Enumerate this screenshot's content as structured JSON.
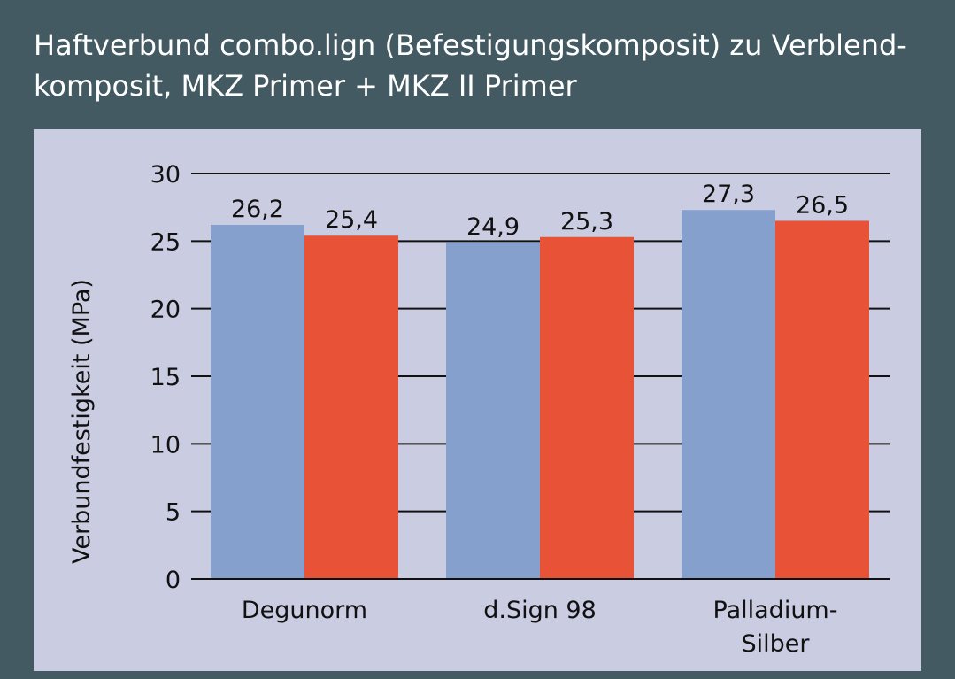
{
  "title": "Haftverbund combo.lign (Befestigungskomposit) zu Verblend-komposit, MKZ Primer + MKZ II Primer",
  "colors": {
    "background": "#435a62",
    "panel": "#cacde2",
    "series_blue": "#85a0cd",
    "series_red": "#e85236",
    "grid": "#111111"
  },
  "chart_data": {
    "type": "bar",
    "title": "Haftverbund combo.lign (Befestigungskomposit) zu Verblend-komposit, MKZ Primer + MKZ II Primer",
    "xlabel": "",
    "ylabel": "Verbundfestigkeit (MPa)",
    "ylim": [
      0,
      30
    ],
    "yticks": [
      "0",
      "5",
      "10",
      "15",
      "20",
      "25",
      "30"
    ],
    "grid": true,
    "categories": [
      [
        "Degunorm"
      ],
      [
        "d.Sign 98"
      ],
      [
        "Palladium-",
        "Silber"
      ]
    ],
    "series": [
      {
        "color": "#85a0cd",
        "values": [
          26.2,
          24.9,
          27.3
        ],
        "labels": [
          "26,2",
          "24,9",
          "27,3"
        ]
      },
      {
        "color": "#e85236",
        "values": [
          25.4,
          25.3,
          26.5
        ],
        "labels": [
          "25,4",
          "25,3",
          "26,5"
        ]
      }
    ]
  }
}
